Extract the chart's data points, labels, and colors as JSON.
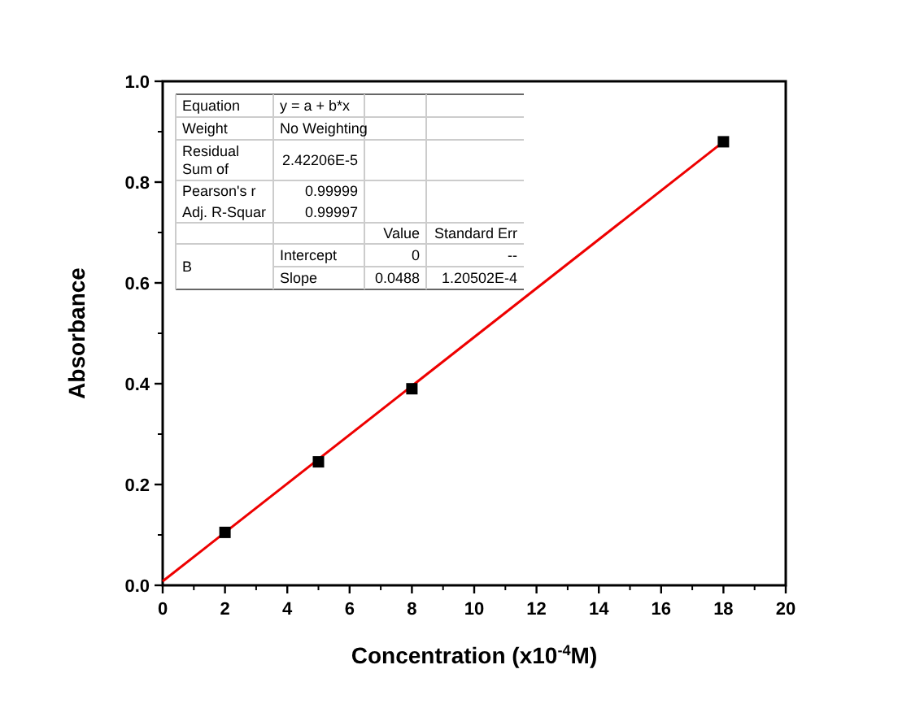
{
  "chart_data": {
    "type": "scatter",
    "xlabel": "Concentration (x10$^{-4}$M)",
    "ylabel": "Absorbance",
    "xlim": [
      0,
      20
    ],
    "xticks": [
      0,
      2,
      4,
      6,
      8,
      10,
      12,
      14,
      16,
      18,
      20
    ],
    "ylim": [
      0,
      1
    ],
    "yticks": [
      {
        "value": 0,
        "label": "0.0"
      },
      {
        "value": 0.2,
        "label": "0.2"
      },
      {
        "value": 0.4,
        "label": "0.4"
      },
      {
        "value": 0.6,
        "label": "0.6"
      },
      {
        "value": 0.8,
        "label": "0.8"
      },
      {
        "value": 1,
        "label": "1.0"
      }
    ],
    "series": [
      {
        "color": "#000000",
        "x": [
          2,
          5,
          8,
          18
        ],
        "values": [
          0.105,
          0.245,
          0.39,
          0.88
        ],
        "marker": "square"
      },
      {
        "type": "line",
        "color": "#ee0000",
        "x": [
          0,
          18
        ],
        "values": [
          0.008,
          0.88
        ],
        "line_style": "solid"
      }
    ],
    "annotations": [
      "Equation",
      "y = a + b*x",
      "Weight",
      "No Weighting",
      "Residual Sum of",
      "2.42206E-5",
      "Pearson's r",
      "0.99999",
      "Adj. R-Squar",
      "0.99997",
      "Value",
      "Standard Err",
      "B",
      "Intercept",
      "0",
      "--",
      "Slope",
      "0.0488",
      "1.20502E-4"
    ]
  }
}
